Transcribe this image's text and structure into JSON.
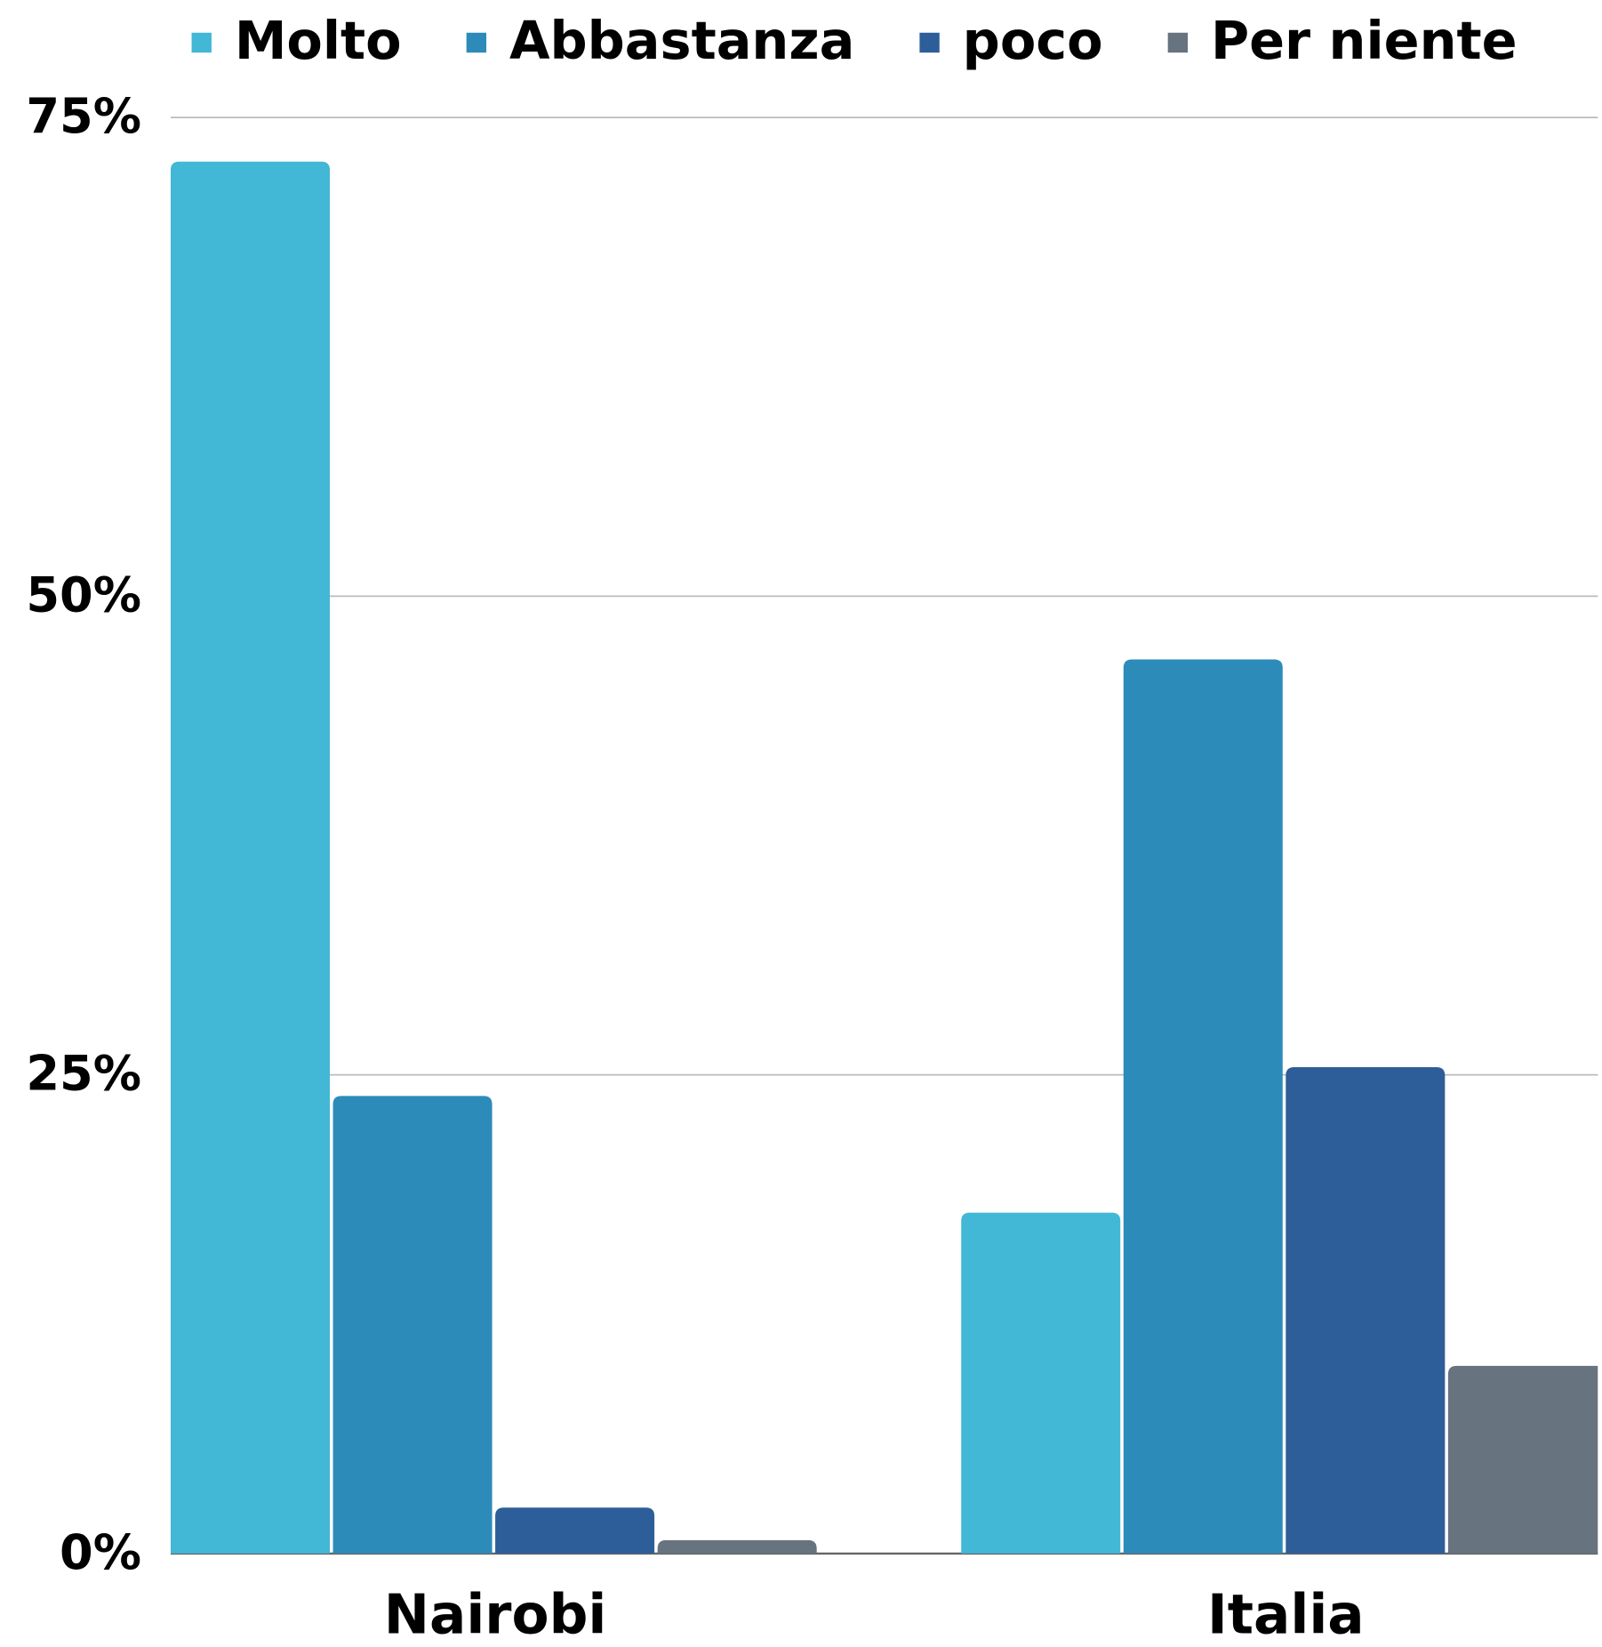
{
  "chart_data": {
    "type": "bar",
    "categories": [
      "Nairobi",
      "Italia"
    ],
    "series": [
      {
        "name": "Molto",
        "color": "#42b7d6",
        "values": [
          72.7,
          17.8
        ]
      },
      {
        "name": "Abbastanza",
        "color": "#2d8bba",
        "values": [
          23.9,
          46.7
        ]
      },
      {
        "name": "poco",
        "color": "#2e5e99",
        "values": [
          2.4,
          25.4
        ]
      },
      {
        "name": "Per niente",
        "color": "#67737f",
        "values": [
          0.7,
          9.8
        ]
      }
    ],
    "ylim": [
      0,
      75
    ],
    "yticks": [
      {
        "value": 0,
        "label": "0%"
      },
      {
        "value": 25,
        "label": "25%"
      },
      {
        "value": 50,
        "label": "50%"
      },
      {
        "value": 75,
        "label": "75%"
      }
    ],
    "grid": true,
    "legend": "top"
  }
}
